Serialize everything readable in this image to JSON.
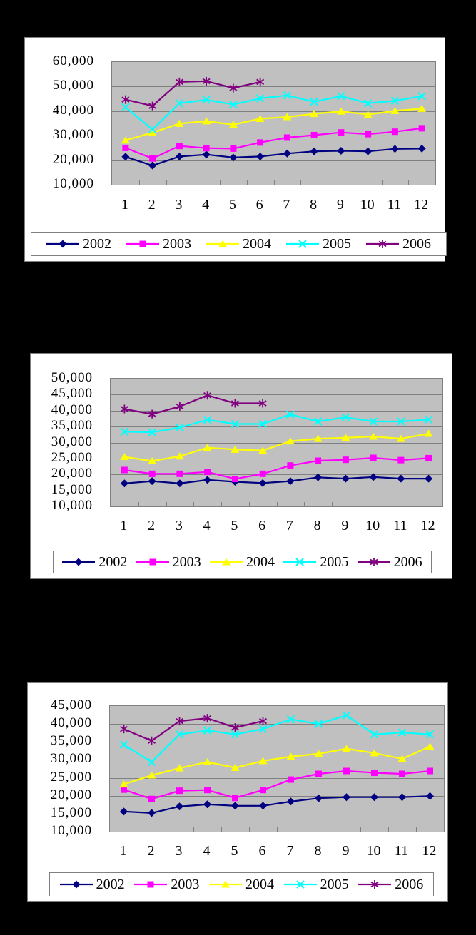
{
  "styles": {
    "page_bg": "#000000",
    "box_bg": "#FFFFFF",
    "plot_bg": "#C0C0C0",
    "grid_color": "#808080",
    "text_color": "#000000",
    "series_colors": {
      "2002": "#000080",
      "2003": "#FF00FF",
      "2004": "#FFFF00",
      "2005": "#00FFFF",
      "2006": "#800080"
    }
  },
  "chart_data": [
    {
      "type": "line",
      "title": "",
      "categories": [
        "1",
        "2",
        "3",
        "4",
        "5",
        "6",
        "7",
        "8",
        "9",
        "10",
        "11",
        "12"
      ],
      "ylim": [
        10000,
        60000
      ],
      "ytick_step": 10000,
      "yticks": [
        "60,000",
        "50,000",
        "40,000",
        "30,000",
        "20,000",
        "10,000"
      ],
      "grid": true,
      "legend_position": "bottom",
      "series": [
        {
          "name": "2002",
          "color": "#000080",
          "marker": "diamond",
          "values": [
            21400,
            17800,
            21500,
            22300,
            21100,
            21500,
            22700,
            23600,
            23800,
            23600,
            24600,
            24700
          ]
        },
        {
          "name": "2003",
          "color": "#FF00FF",
          "marker": "square",
          "values": [
            25000,
            20700,
            25800,
            24900,
            24700,
            27200,
            29200,
            30200,
            31300,
            30600,
            31600,
            33000
          ]
        },
        {
          "name": "2004",
          "color": "#FFFF00",
          "marker": "triangle",
          "values": [
            28100,
            31200,
            34900,
            35900,
            34500,
            36900,
            37600,
            38900,
            39900,
            38600,
            40100,
            41000
          ]
        },
        {
          "name": "2005",
          "color": "#00FFFF",
          "marker": "x",
          "values": [
            41600,
            32500,
            43200,
            44600,
            42700,
            45200,
            46400,
            43800,
            46100,
            43200,
            44200,
            46100
          ]
        },
        {
          "name": "2006",
          "color": "#800080",
          "marker": "asterisk",
          "values": [
            44700,
            42100,
            51900,
            52200,
            49400,
            51900
          ]
        }
      ]
    },
    {
      "type": "line",
      "title": "",
      "categories": [
        "1",
        "2",
        "3",
        "4",
        "5",
        "6",
        "7",
        "8",
        "9",
        "10",
        "11",
        "12"
      ],
      "ylim": [
        10000,
        50000
      ],
      "ytick_step": 5000,
      "yticks": [
        "50,000",
        "45,000",
        "40,000",
        "35,000",
        "30,000",
        "25,000",
        "20,000",
        "15,000",
        "10,000"
      ],
      "grid": true,
      "legend_position": "bottom",
      "series": [
        {
          "name": "2002",
          "color": "#000080",
          "marker": "diamond",
          "values": [
            17200,
            17900,
            17200,
            18300,
            17700,
            17300,
            17900,
            19100,
            18700,
            19200,
            18700,
            18700
          ]
        },
        {
          "name": "2003",
          "color": "#FF00FF",
          "marker": "square",
          "values": [
            21400,
            20200,
            20200,
            20800,
            18600,
            20200,
            22800,
            24300,
            24600,
            25200,
            24500,
            25100
          ]
        },
        {
          "name": "2004",
          "color": "#FFFF00",
          "marker": "triangle",
          "values": [
            25500,
            24200,
            25700,
            28400,
            27800,
            27500,
            30400,
            31200,
            31500,
            31900,
            31200,
            32800
          ]
        },
        {
          "name": "2005",
          "color": "#00FFFF",
          "marker": "x",
          "values": [
            33400,
            33200,
            34700,
            37100,
            35800,
            35800,
            38800,
            36600,
            37900,
            36600,
            36600,
            37200
          ]
        },
        {
          "name": "2006",
          "color": "#800080",
          "marker": "asterisk",
          "values": [
            40500,
            38900,
            41300,
            44800,
            42300,
            42300
          ]
        }
      ]
    },
    {
      "type": "line",
      "title": "",
      "categories": [
        "1",
        "2",
        "3",
        "4",
        "5",
        "6",
        "7",
        "8",
        "9",
        "10",
        "11",
        "12"
      ],
      "ylim": [
        10000,
        45000
      ],
      "ytick_step": 5000,
      "yticks": [
        "45,000",
        "40,000",
        "35,000",
        "30,000",
        "25,000",
        "20,000",
        "15,000",
        "10,000"
      ],
      "grid": true,
      "legend_position": "bottom",
      "series": [
        {
          "name": "2002",
          "color": "#000080",
          "marker": "diamond",
          "values": [
            15600,
            15200,
            17000,
            17600,
            17200,
            17200,
            18400,
            19300,
            19600,
            19600,
            19600,
            19900
          ]
        },
        {
          "name": "2003",
          "color": "#FF00FF",
          "marker": "square",
          "values": [
            21700,
            19100,
            21400,
            21600,
            19400,
            21600,
            24500,
            26100,
            26900,
            26400,
            26100,
            26900
          ]
        },
        {
          "name": "2004",
          "color": "#FFFF00",
          "marker": "triangle",
          "values": [
            23200,
            25700,
            27700,
            29400,
            27800,
            29700,
            30900,
            31700,
            33100,
            31900,
            30300,
            33700
          ]
        },
        {
          "name": "2005",
          "color": "#00FFFF",
          "marker": "x",
          "values": [
            34200,
            29400,
            37100,
            38200,
            37100,
            38600,
            41300,
            40000,
            42400,
            37100,
            37600,
            37100
          ]
        },
        {
          "name": "2006",
          "color": "#800080",
          "marker": "asterisk",
          "values": [
            38600,
            35300,
            40800,
            41600,
            39000,
            40800
          ]
        }
      ]
    }
  ]
}
